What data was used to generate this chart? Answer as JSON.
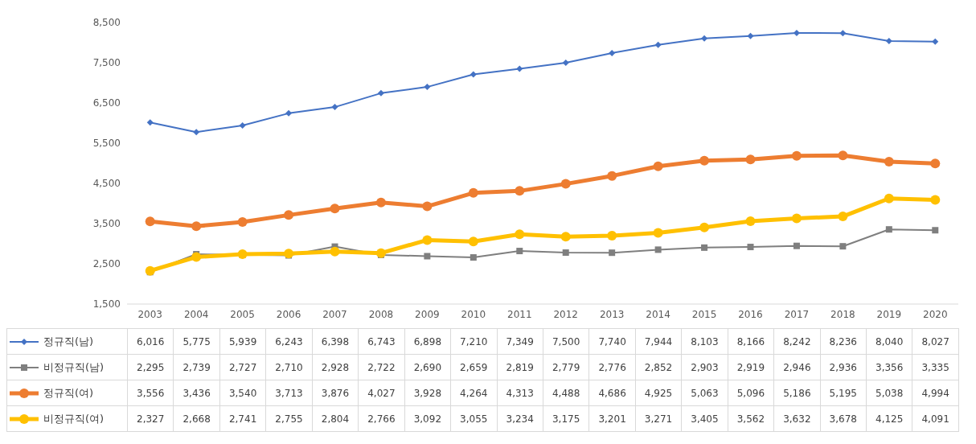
{
  "chart_data": {
    "type": "line",
    "categories": [
      "2003",
      "2004",
      "2005",
      "2006",
      "2007",
      "2008",
      "2009",
      "2010",
      "2011",
      "2012",
      "2013",
      "2014",
      "2015",
      "2016",
      "2017",
      "2018",
      "2019",
      "2020"
    ],
    "series": [
      {
        "name": "정규직(남)",
        "color": "#4472c4",
        "marker": "diamond",
        "values": [
          6016,
          5775,
          5939,
          6243,
          6398,
          6743,
          6898,
          7210,
          7349,
          7500,
          7740,
          7944,
          8103,
          8166,
          8242,
          8236,
          8040,
          8027
        ],
        "value_labels": [
          "6,016",
          "5,775",
          "5,939",
          "6,243",
          "6,398",
          "6,743",
          "6,898",
          "7,210",
          "7,349",
          "7,500",
          "7,740",
          "7,944",
          "8,103",
          "8,166",
          "8,242",
          "8,236",
          "8,040",
          "8,027"
        ]
      },
      {
        "name": "비정규직(남)",
        "color": "#7f7f7f",
        "marker": "square",
        "values": [
          2295,
          2739,
          2727,
          2710,
          2928,
          2722,
          2690,
          2659,
          2819,
          2779,
          2776,
          2852,
          2903,
          2919,
          2946,
          2936,
          3356,
          3335
        ],
        "value_labels": [
          "2,295",
          "2,739",
          "2,727",
          "2,710",
          "2,928",
          "2,722",
          "2,690",
          "2,659",
          "2,819",
          "2,779",
          "2,776",
          "2,852",
          "2,903",
          "2,919",
          "2,946",
          "2,936",
          "3,356",
          "3,335"
        ]
      },
      {
        "name": "정규직(여)",
        "color": "#ed7d31",
        "marker": "circle",
        "values": [
          3556,
          3436,
          3540,
          3713,
          3876,
          4027,
          3928,
          4264,
          4313,
          4488,
          4686,
          4925,
          5063,
          5096,
          5186,
          5195,
          5038,
          4994
        ],
        "value_labels": [
          "3,556",
          "3,436",
          "3,540",
          "3,713",
          "3,876",
          "4,027",
          "3,928",
          "4,264",
          "4,313",
          "4,488",
          "4,686",
          "4,925",
          "5,063",
          "5,096",
          "5,186",
          "5,195",
          "5,038",
          "4,994"
        ]
      },
      {
        "name": "비정규직(여)",
        "color": "#ffc000",
        "marker": "circle",
        "values": [
          2327,
          2668,
          2741,
          2755,
          2804,
          2766,
          3092,
          3055,
          3234,
          3175,
          3201,
          3271,
          3405,
          3562,
          3632,
          3678,
          4125,
          4091
        ],
        "value_labels": [
          "2,327",
          "2,668",
          "2,741",
          "2,755",
          "2,804",
          "2,766",
          "3,092",
          "3,055",
          "3,234",
          "3,175",
          "3,201",
          "3,271",
          "3,405",
          "3,562",
          "3,632",
          "3,678",
          "4,125",
          "4,091"
        ]
      }
    ],
    "ylim": [
      1500,
      8500
    ],
    "yticks": [
      {
        "value": 1500,
        "label": "1,500"
      },
      {
        "value": 2500,
        "label": "2,500"
      },
      {
        "value": 3500,
        "label": "3,500"
      },
      {
        "value": 4500,
        "label": "4,500"
      },
      {
        "value": 5500,
        "label": "5,500"
      },
      {
        "value": 6500,
        "label": "6,500"
      },
      {
        "value": 7500,
        "label": "7,500"
      },
      {
        "value": 8500,
        "label": "8,500"
      }
    ],
    "grid": false,
    "legend": "bottom"
  }
}
